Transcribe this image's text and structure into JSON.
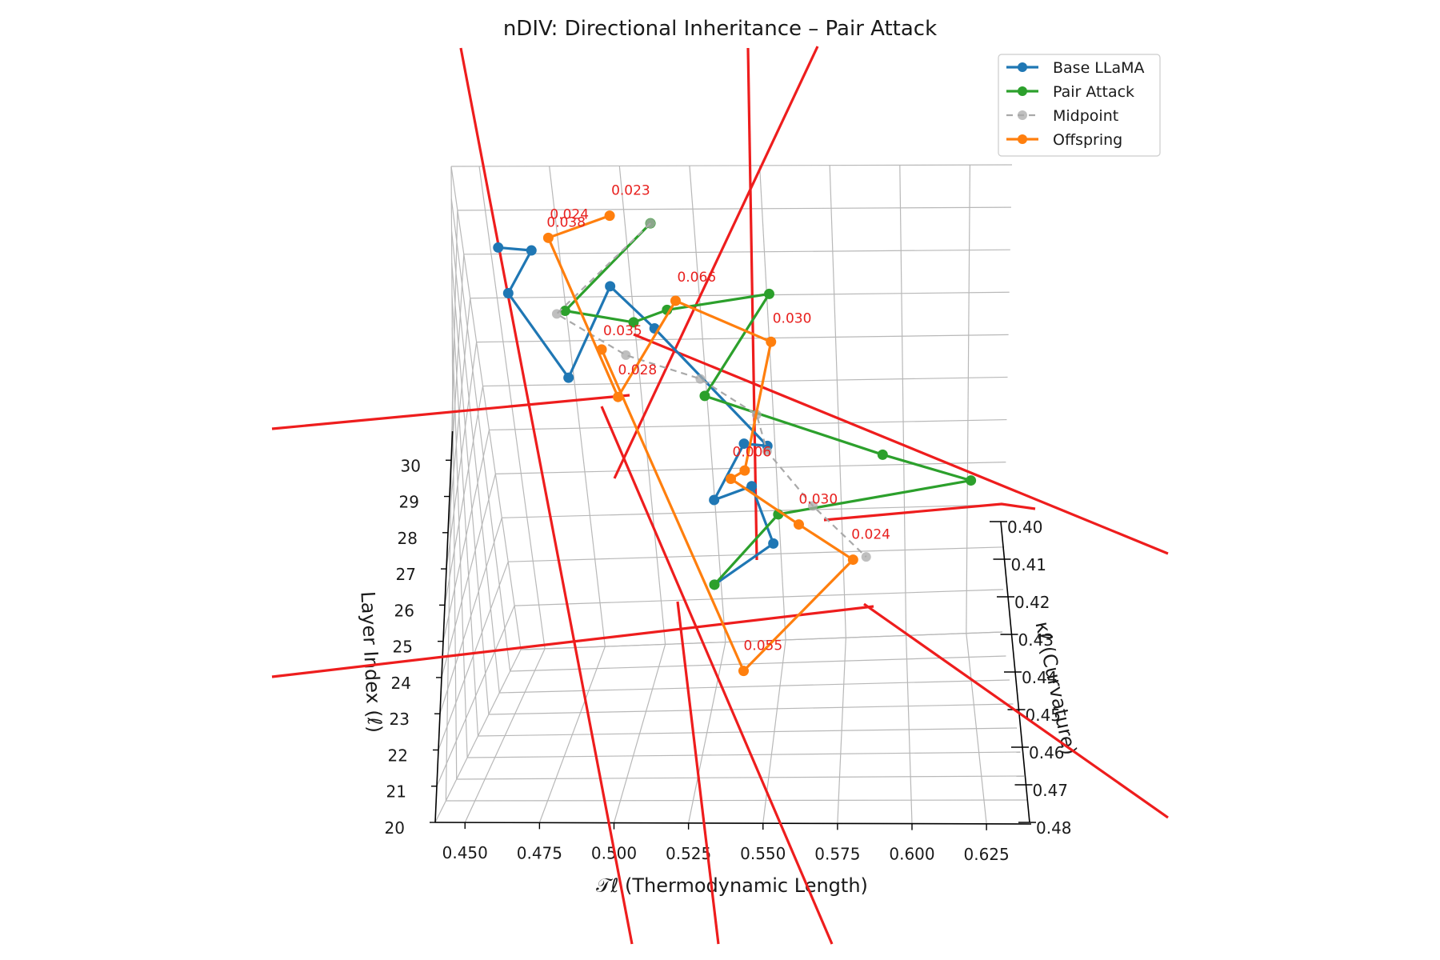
{
  "chart_data": {
    "type": "line",
    "projection": "3d",
    "title": "nDIV: Directional Inheritance – Pair Attack",
    "xlabel": "𝒯ℓ (Thermodynamic Length)",
    "ylabel": "κℓ (Curvature)",
    "zlabel": "Layer Index (ℓ)",
    "xlim": [
      0.44,
      0.64
    ],
    "ylim": [
      0.4,
      0.48
    ],
    "zlim": [
      20,
      31
    ],
    "x_ticks": [
      "0.450",
      "0.475",
      "0.500",
      "0.525",
      "0.550",
      "0.575",
      "0.600",
      "0.625"
    ],
    "y_ticks": [
      "0.40",
      "0.41",
      "0.42",
      "0.43",
      "0.44",
      "0.45",
      "0.46",
      "0.47",
      "0.48"
    ],
    "z_ticks": [
      "20",
      "21",
      "22",
      "23",
      "24",
      "25",
      "26",
      "27",
      "28",
      "29",
      "30"
    ],
    "grid": true,
    "legend_position": "top-right",
    "series": [
      {
        "name": "Base LLaMA",
        "color": "#1f77b4",
        "style": "solid-marker",
        "values": [
          [
            0.455,
            0.412,
            30
          ],
          [
            0.467,
            0.413,
            30
          ],
          [
            0.457,
            0.413,
            29
          ],
          [
            0.476,
            0.413,
            27
          ],
          [
            0.494,
            0.411,
            29
          ],
          [
            0.509,
            0.411,
            28
          ],
          [
            0.548,
            0.408,
            25
          ],
          [
            0.539,
            0.407,
            25
          ],
          [
            0.527,
            0.412,
            24
          ],
          [
            0.541,
            0.407,
            24
          ],
          [
            0.549,
            0.413,
            23
          ],
          [
            0.525,
            0.412,
            22
          ]
        ]
      },
      {
        "name": "Pair Attack",
        "color": "#2ca02c",
        "style": "solid-marker",
        "values": [
          [
            0.511,
            0.418,
            31
          ],
          [
            0.478,
            0.419,
            29
          ],
          [
            0.503,
            0.423,
            29
          ],
          [
            0.515,
            0.419,
            29
          ],
          [
            0.552,
            0.414,
            29
          ],
          [
            0.527,
            0.42,
            27
          ],
          [
            0.592,
            0.412,
            25
          ],
          [
            0.625,
            0.422,
            25
          ],
          [
            0.552,
            0.418,
            24
          ],
          [
            0.525,
            0.412,
            22
          ]
        ]
      },
      {
        "name": "Midpoint",
        "color": "#a9a9a9",
        "style": "dashed-marker",
        "values": [
          [
            0.511,
            0.418,
            31
          ],
          [
            0.475,
            0.42,
            29
          ],
          [
            0.499,
            0.42,
            28
          ],
          [
            0.525,
            0.414,
            27
          ],
          [
            0.545,
            0.412,
            26
          ],
          [
            0.548,
            0.41,
            25
          ],
          [
            0.565,
            0.415,
            24
          ],
          [
            0.585,
            0.419,
            23
          ]
        ]
      },
      {
        "name": "Offspring",
        "color": "#ff7f0e",
        "style": "solid-marker",
        "values": [
          [
            0.495,
            0.402,
            30
          ],
          [
            0.473,
            0.409,
            30
          ],
          [
            0.495,
            0.42,
            27
          ],
          [
            0.518,
            0.416,
            29
          ],
          [
            0.552,
            0.416,
            28
          ],
          [
            0.54,
            0.417,
            25
          ],
          [
            0.535,
            0.42,
            25
          ],
          [
            0.56,
            0.422,
            24
          ],
          [
            0.58,
            0.42,
            23
          ],
          [
            0.538,
            0.431,
            21
          ],
          [
            0.49,
            0.418,
            28
          ]
        ]
      }
    ],
    "annotations": [
      "0.024",
      "0.038",
      "0.023",
      "0.066",
      "0.035",
      "0.028",
      "0.030",
      "0.006",
      "0.024",
      "0.030",
      "0.055"
    ],
    "annotation_color": "#e8201e",
    "reference_line_color": "#ee1d1d"
  }
}
